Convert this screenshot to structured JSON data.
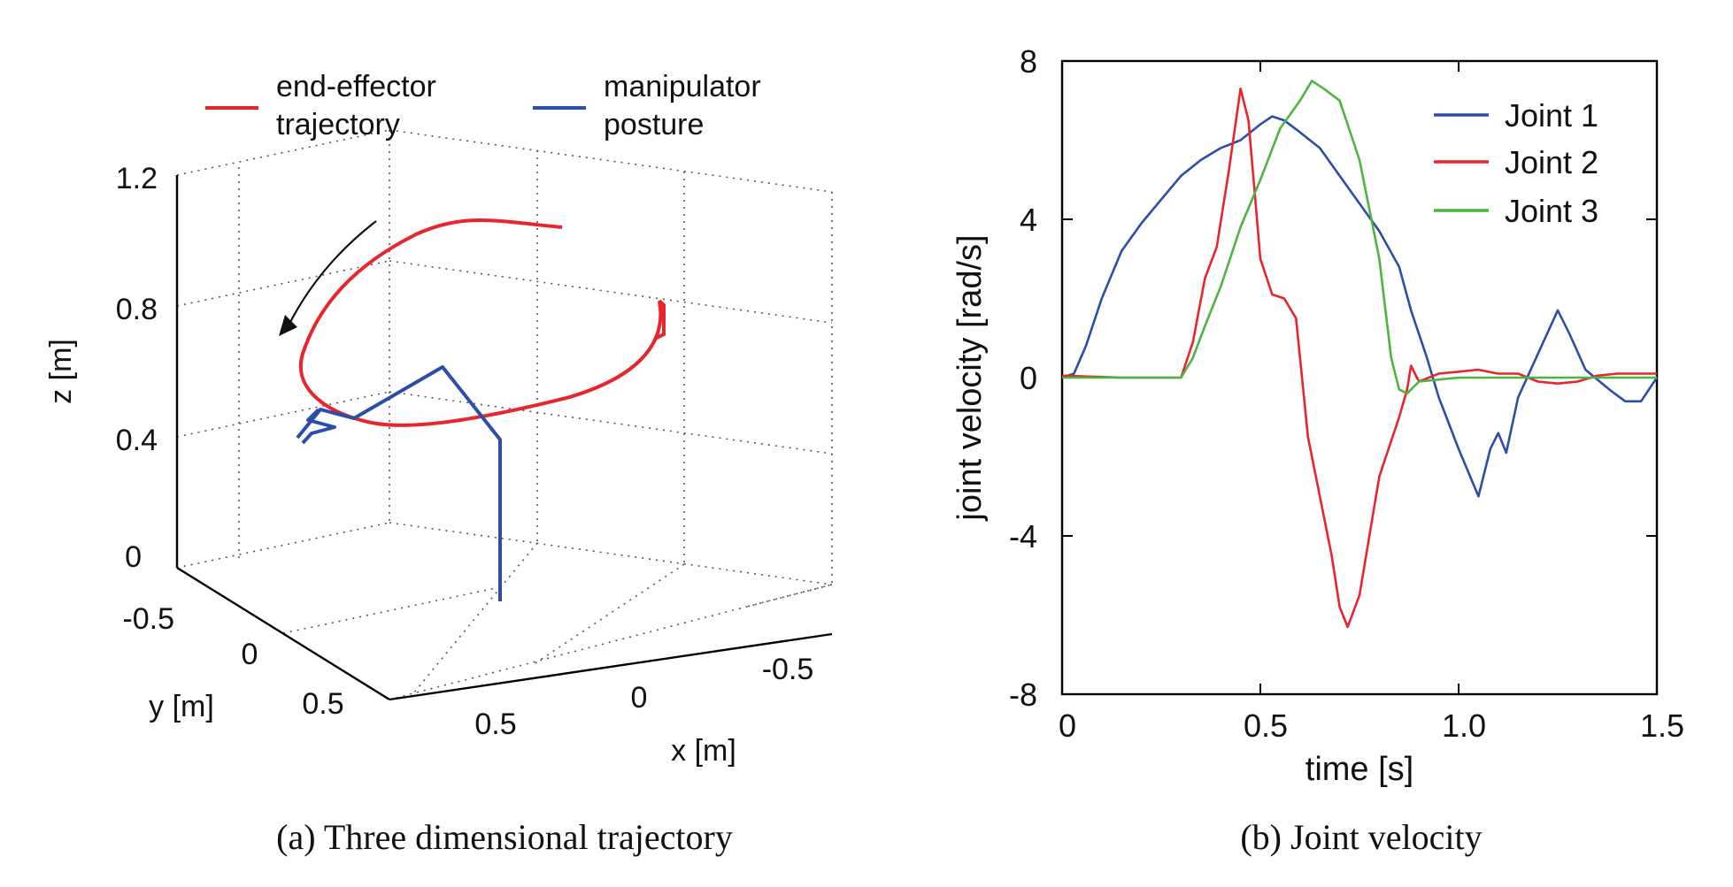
{
  "chart_data": [
    {
      "type": "line",
      "subtype": "3d-line",
      "caption": "(a) Three dimensional trajectory",
      "xlabel": "x [m]",
      "ylabel": "y [m]",
      "zlabel": "z [m]",
      "x_ticks": [
        "0.5",
        "0",
        "-0.5"
      ],
      "y_ticks": [
        "-0.5",
        "0",
        "0.5"
      ],
      "z_ticks": [
        "0",
        "0.4",
        "0.8",
        "1.2"
      ],
      "zlim": [
        0,
        1.2
      ],
      "grid": true,
      "legend": [
        {
          "label": "end-effector\ntrajectory",
          "color": "#e8242c"
        },
        {
          "label": "manipulator\nposture",
          "color": "#2b4ea8"
        }
      ],
      "annotation": "curved arrow indicating direction of motion",
      "series": [
        {
          "name": "end-effector trajectory",
          "color": "#e8242c",
          "points": [
            [
              0.35,
              0.15,
              0.82
            ],
            [
              0.1,
              0.1,
              0.84
            ],
            [
              -0.25,
              0.05,
              0.6
            ],
            [
              -0.35,
              0.1,
              0.35
            ],
            [
              -0.1,
              0.3,
              0.3
            ],
            [
              0.25,
              0.45,
              0.48
            ],
            [
              0.5,
              0.4,
              0.72
            ],
            [
              0.5,
              0.25,
              1.0
            ]
          ]
        },
        {
          "name": "manipulator posture",
          "color": "#2b4ea8",
          "points": [
            [
              0,
              0,
              0
            ],
            [
              0,
              0,
              0.6
            ],
            [
              -0.2,
              0.1,
              0.9
            ],
            [
              -0.5,
              0.3,
              0.6
            ],
            [
              -0.75,
              0.35,
              0.55
            ]
          ]
        }
      ]
    },
    {
      "type": "line",
      "caption": "(b) Joint velocity",
      "xlabel": "time [s]",
      "ylabel": "joint velocity [rad/s]",
      "xlim": [
        0,
        1.5
      ],
      "ylim": [
        -8,
        8
      ],
      "x_ticks": [
        "0",
        "0.5",
        "1.0",
        "1.5"
      ],
      "y_ticks": [
        "-8",
        "-4",
        "0",
        "4",
        "8"
      ],
      "grid": false,
      "legend_position": "top-right",
      "series": [
        {
          "name": "Joint 1",
          "color": "#2b4ea8",
          "points": [
            [
              0,
              0
            ],
            [
              0.03,
              0.1
            ],
            [
              0.06,
              0.8
            ],
            [
              0.1,
              2.0
            ],
            [
              0.15,
              3.2
            ],
            [
              0.2,
              3.9
            ],
            [
              0.25,
              4.5
            ],
            [
              0.3,
              5.1
            ],
            [
              0.35,
              5.5
            ],
            [
              0.4,
              5.8
            ],
            [
              0.45,
              6.0
            ],
            [
              0.5,
              6.4
            ],
            [
              0.53,
              6.6
            ],
            [
              0.56,
              6.5
            ],
            [
              0.6,
              6.2
            ],
            [
              0.65,
              5.8
            ],
            [
              0.7,
              5.1
            ],
            [
              0.75,
              4.4
            ],
            [
              0.8,
              3.7
            ],
            [
              0.85,
              2.8
            ],
            [
              0.88,
              1.7
            ],
            [
              0.92,
              0.5
            ],
            [
              0.95,
              -0.5
            ],
            [
              1.0,
              -1.8
            ],
            [
              1.05,
              -3.0
            ],
            [
              1.08,
              -1.8
            ],
            [
              1.1,
              -1.4
            ],
            [
              1.12,
              -1.9
            ],
            [
              1.15,
              -0.5
            ],
            [
              1.2,
              0.6
            ],
            [
              1.25,
              1.7
            ],
            [
              1.28,
              1.1
            ],
            [
              1.32,
              0.2
            ],
            [
              1.38,
              -0.3
            ],
            [
              1.42,
              -0.6
            ],
            [
              1.46,
              -0.6
            ],
            [
              1.5,
              0
            ]
          ]
        },
        {
          "name": "Joint 2",
          "color": "#e8242c",
          "points": [
            [
              0,
              0.05
            ],
            [
              0.15,
              0.0
            ],
            [
              0.3,
              0.0
            ],
            [
              0.33,
              0.9
            ],
            [
              0.36,
              2.5
            ],
            [
              0.39,
              3.3
            ],
            [
              0.42,
              5.2
            ],
            [
              0.45,
              7.3
            ],
            [
              0.47,
              6.5
            ],
            [
              0.5,
              3.0
            ],
            [
              0.53,
              2.1
            ],
            [
              0.56,
              2.0
            ],
            [
              0.59,
              1.5
            ],
            [
              0.62,
              -1.5
            ],
            [
              0.65,
              -3.0
            ],
            [
              0.68,
              -4.5
            ],
            [
              0.7,
              -5.8
            ],
            [
              0.72,
              -6.3
            ],
            [
              0.75,
              -5.5
            ],
            [
              0.78,
              -3.7
            ],
            [
              0.8,
              -2.5
            ],
            [
              0.83,
              -1.6
            ],
            [
              0.85,
              -1.0
            ],
            [
              0.87,
              -0.3
            ],
            [
              0.88,
              0.3
            ],
            [
              0.9,
              -0.1
            ],
            [
              0.95,
              0.1
            ],
            [
              1.0,
              0.15
            ],
            [
              1.05,
              0.2
            ],
            [
              1.1,
              0.1
            ],
            [
              1.15,
              0.1
            ],
            [
              1.2,
              -0.1
            ],
            [
              1.25,
              -0.15
            ],
            [
              1.3,
              -0.1
            ],
            [
              1.35,
              0.05
            ],
            [
              1.4,
              0.1
            ],
            [
              1.45,
              0.1
            ],
            [
              1.5,
              0.1
            ]
          ]
        },
        {
          "name": "Joint 3",
          "color": "#4db43f",
          "points": [
            [
              0,
              0
            ],
            [
              0.15,
              0.0
            ],
            [
              0.3,
              0.0
            ],
            [
              0.33,
              0.5
            ],
            [
              0.36,
              1.3
            ],
            [
              0.4,
              2.3
            ],
            [
              0.45,
              3.8
            ],
            [
              0.5,
              5.0
            ],
            [
              0.55,
              6.3
            ],
            [
              0.6,
              7.0
            ],
            [
              0.63,
              7.5
            ],
            [
              0.66,
              7.3
            ],
            [
              0.7,
              7.0
            ],
            [
              0.75,
              5.5
            ],
            [
              0.8,
              3.0
            ],
            [
              0.83,
              0.5
            ],
            [
              0.85,
              -0.3
            ],
            [
              0.87,
              -0.4
            ],
            [
              0.9,
              -0.1
            ],
            [
              1.0,
              0.0
            ],
            [
              1.2,
              0.0
            ],
            [
              1.5,
              0.0
            ]
          ]
        }
      ]
    }
  ]
}
